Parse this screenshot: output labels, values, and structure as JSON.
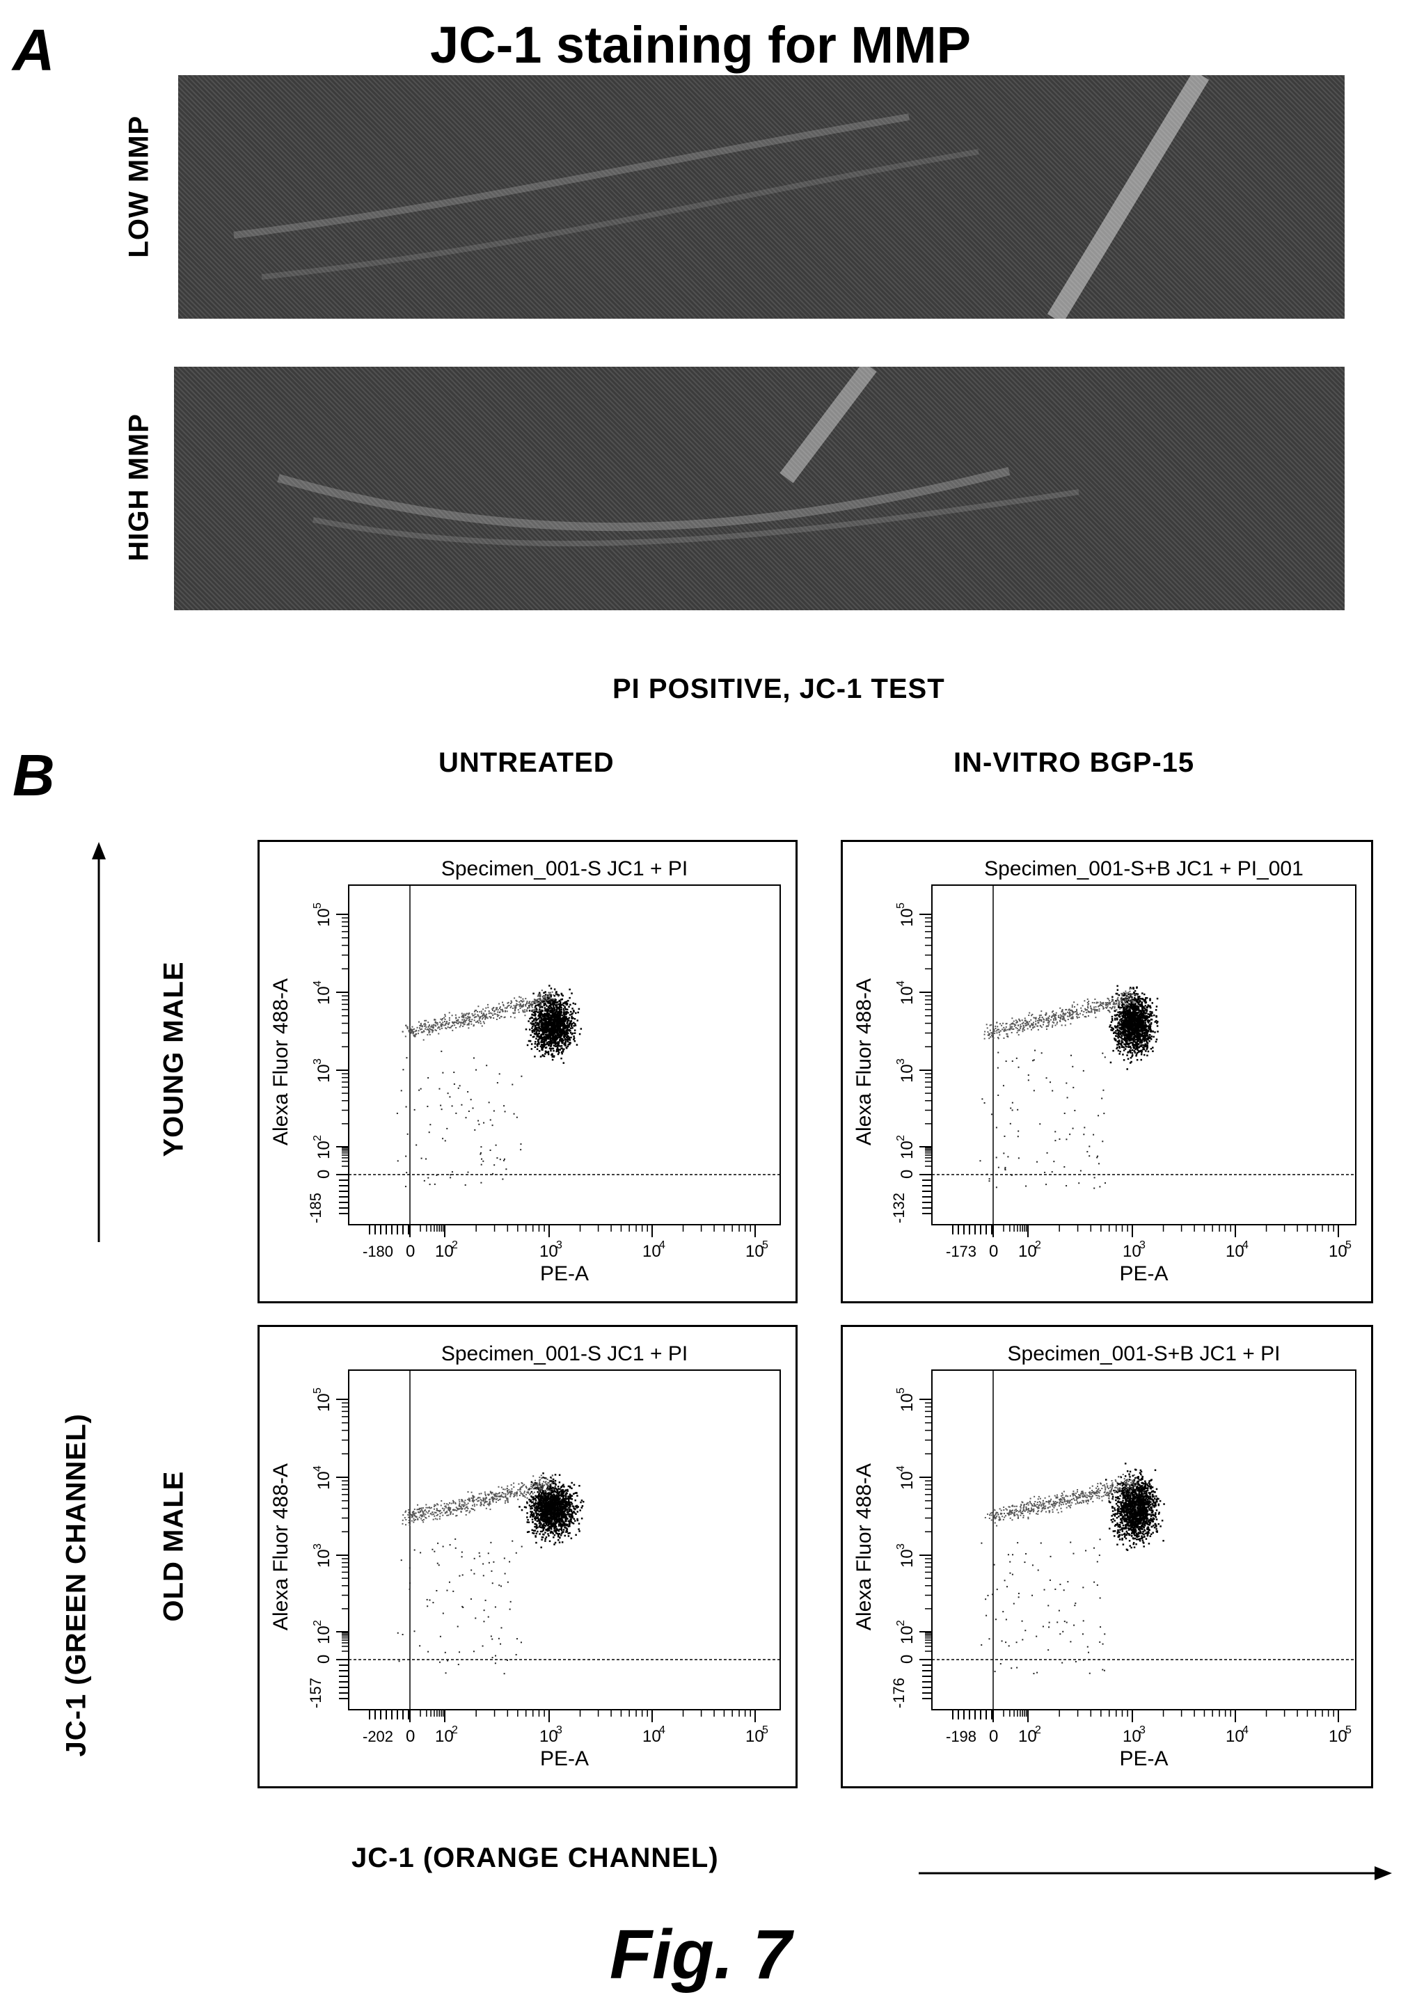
{
  "panel_a": {
    "letter": "A",
    "title": "JC-1 staining for MMP",
    "rows": [
      {
        "label": "LOW MMP"
      },
      {
        "label": "HIGH MMP"
      }
    ]
  },
  "panel_b": {
    "letter": "B",
    "header": "PI POSITIVE, JC-1 TEST",
    "columns": [
      "UNTREATED",
      "IN-VITRO BGP-15"
    ],
    "rows": [
      "YOUNG MALE",
      "OLD MALE"
    ],
    "y_axis_label": "JC-1 (GREEN CHANNEL)",
    "x_axis_label": "JC-1 (ORANGE CHANNEL)",
    "plots": [
      {
        "title": "Specimen_001-S JC1 + PI",
        "xlabel": "PE-A",
        "ylabel": "Alexa Fluor 488-A",
        "xmin": "-180",
        "ymin": "-185"
      },
      {
        "title": "Specimen_001-S+B JC1 + PI_001",
        "xlabel": "PE-A",
        "ylabel": "Alexa Fluor 488-A",
        "xmin": "-173",
        "ymin": "-132"
      },
      {
        "title": "Specimen_001-S JC1 + PI",
        "xlabel": "PE-A",
        "ylabel": "Alexa Fluor 488-A",
        "xmin": "-202",
        "ymin": "-157"
      },
      {
        "title": "Specimen_001-S+B JC1 + PI",
        "xlabel": "PE-A",
        "ylabel": "Alexa Fluor 488-A",
        "xmin": "-198",
        "ymin": "-176"
      }
    ],
    "tick_labels_x": [
      "0",
      "10",
      "10",
      "10",
      "10"
    ],
    "tick_exps_x": [
      "",
      "2",
      "3",
      "4",
      "5"
    ],
    "tick_labels_y": [
      "0",
      "10",
      "10",
      "10",
      "10"
    ],
    "tick_exps_y": [
      "",
      "2",
      "3",
      "4",
      "5"
    ]
  },
  "figure_label": "Fig. 7"
}
